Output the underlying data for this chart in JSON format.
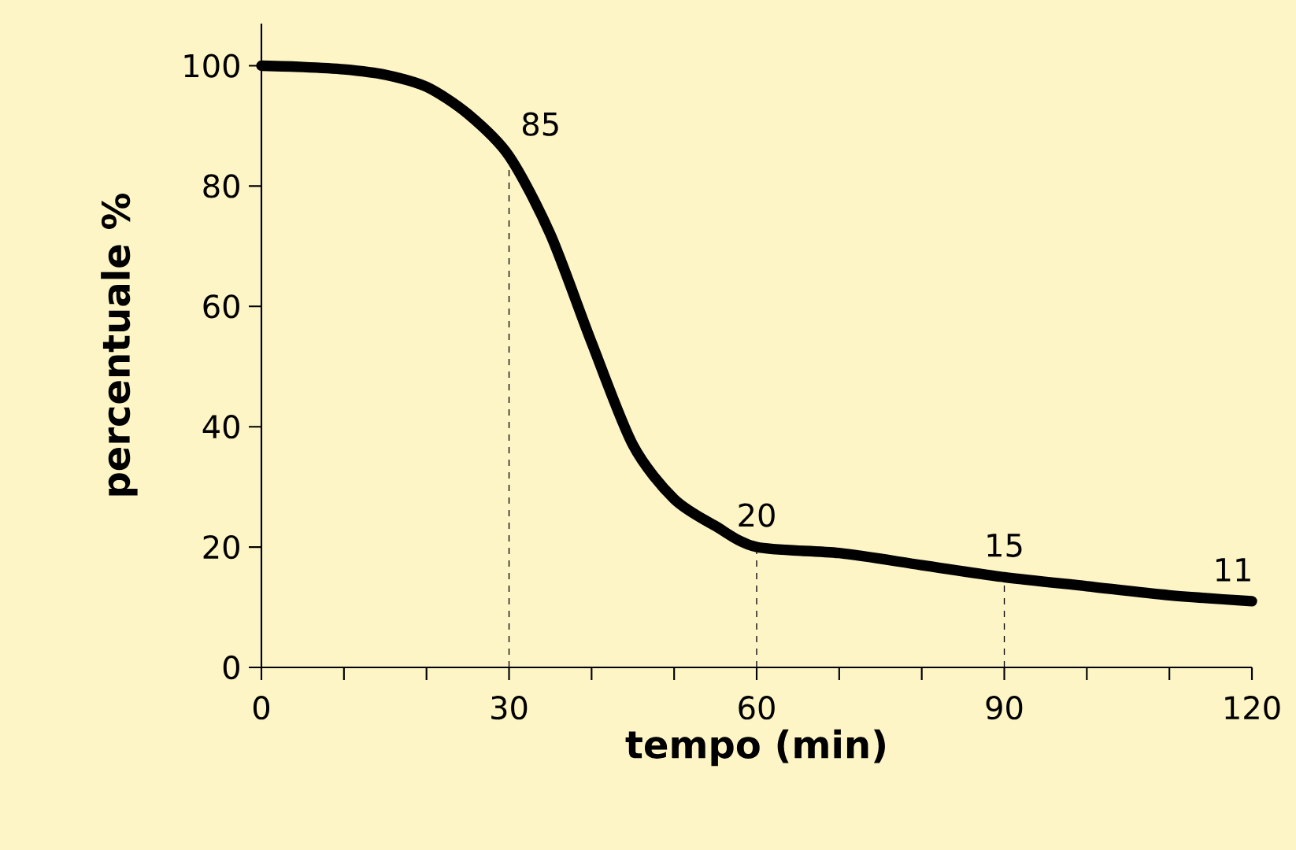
{
  "chart_data": {
    "type": "line",
    "xlabel": "tempo (min)",
    "ylabel": "percentuale %",
    "x": [
      0,
      5,
      10,
      15,
      20,
      25,
      30,
      35,
      40,
      45,
      50,
      55,
      60,
      70,
      80,
      90,
      100,
      110,
      120
    ],
    "values": [
      100,
      99.8,
      99.4,
      98.5,
      96.5,
      92,
      85,
      72,
      54,
      37,
      28,
      23.5,
      20,
      19,
      17,
      15,
      13.5,
      12,
      11
    ],
    "color": "#000000",
    "marker": "none",
    "line_style": "solid",
    "xlim": [
      0,
      120
    ],
    "ylim": [
      0,
      107
    ],
    "xticks": [
      0,
      {
        "value": 10,
        "label": null
      },
      {
        "value": 20,
        "label": null
      },
      30,
      {
        "value": 40,
        "label": null
      },
      {
        "value": 50,
        "label": null
      },
      60,
      {
        "value": 70,
        "label": null
      },
      {
        "value": 80,
        "label": null
      },
      90,
      {
        "value": 100,
        "label": null
      },
      {
        "value": 110,
        "label": null
      },
      120
    ],
    "yticks": [
      0,
      20,
      40,
      60,
      80,
      100
    ],
    "ref_lines": [
      {
        "axis": "x",
        "value": 30,
        "line_style": "dashed"
      },
      {
        "axis": "x",
        "value": 60,
        "line_style": "dashed"
      },
      {
        "axis": "x",
        "value": 90,
        "line_style": "dashed"
      }
    ],
    "annotations": [
      {
        "text": "85",
        "x": 30,
        "y": 85
      },
      {
        "text": "20",
        "x": 60,
        "y": 20
      },
      {
        "text": "15",
        "x": 90,
        "y": 15
      },
      {
        "text": "11",
        "x": 120,
        "y": 11
      }
    ]
  }
}
